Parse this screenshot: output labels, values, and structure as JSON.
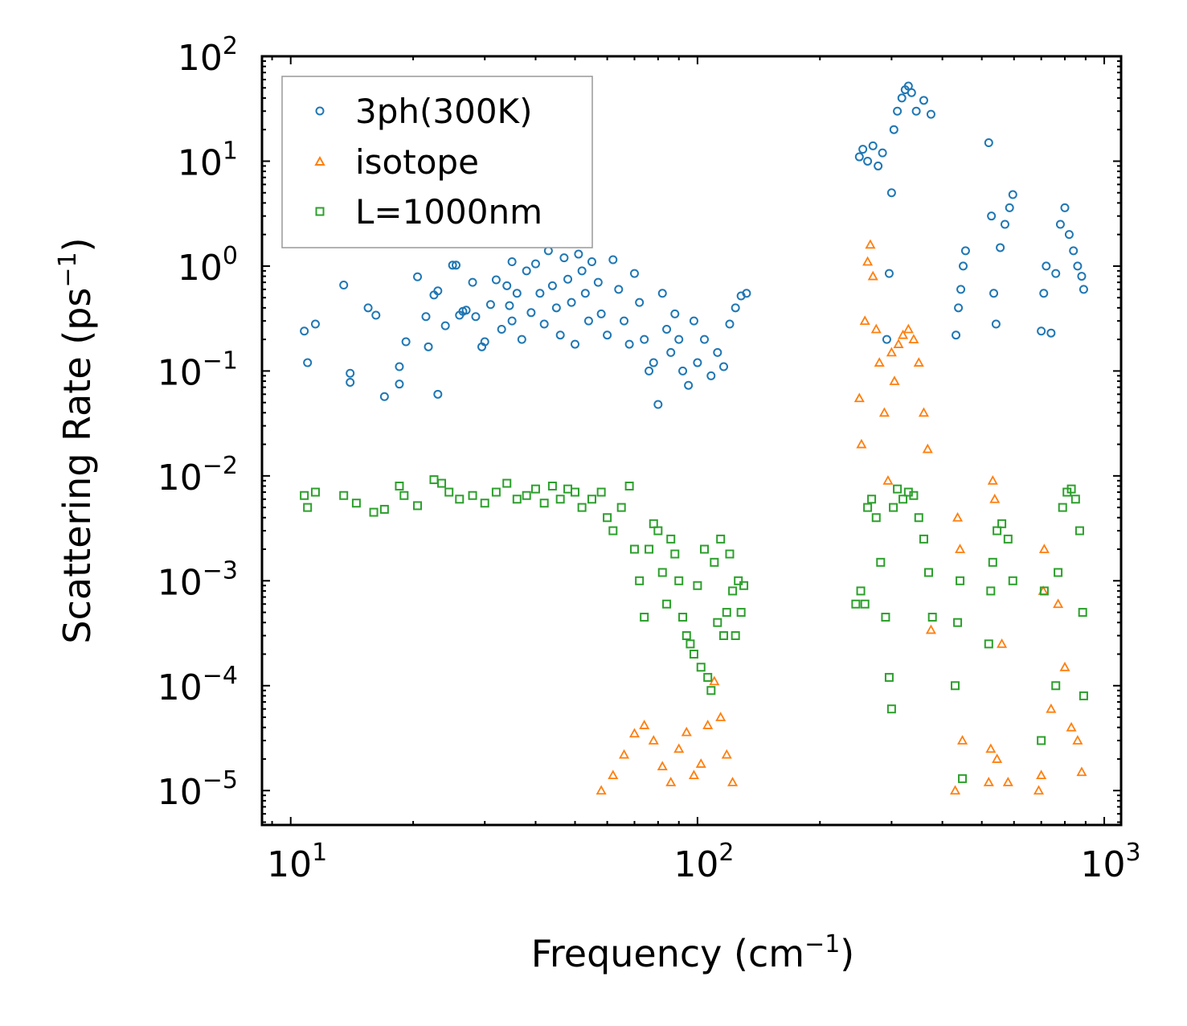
{
  "chart_data": {
    "type": "scatter",
    "title": "",
    "xlabel": "Frequency (cm",
    "xlabel_sup": "−1",
    "xlabel_end": ")",
    "ylabel": "Scattering Rate (ps",
    "ylabel_sup": "−1",
    "ylabel_end": ")",
    "xscale": "log",
    "yscale": "log",
    "xlim": [
      8.5,
      1100
    ],
    "ylim": [
      4.7e-06,
      100
    ],
    "x_ticks": [
      {
        "base": "10",
        "exp": "1",
        "value": 10
      },
      {
        "base": "10",
        "exp": "2",
        "value": 100
      },
      {
        "base": "10",
        "exp": "3",
        "value": 1000
      }
    ],
    "y_ticks": [
      {
        "base": "10",
        "exp": "2",
        "value": 100
      },
      {
        "base": "10",
        "exp": "1",
        "value": 10
      },
      {
        "base": "10",
        "exp": "0",
        "value": 1
      },
      {
        "base": "10",
        "exp": "−1",
        "value": 0.1
      },
      {
        "base": "10",
        "exp": "−2",
        "value": 0.01
      },
      {
        "base": "10",
        "exp": "−3",
        "value": 0.001
      },
      {
        "base": "10",
        "exp": "−4",
        "value": 0.0001
      },
      {
        "base": "10",
        "exp": "−5",
        "value": 1e-05
      }
    ],
    "legend_position": "top-left",
    "series": [
      {
        "name": "3ph(300K)",
        "marker": "circle",
        "color": "#1f77b4",
        "points": [
          [
            10.8,
            0.24
          ],
          [
            11.0,
            0.12
          ],
          [
            11.5,
            0.28
          ],
          [
            13.5,
            0.66
          ],
          [
            14.0,
            0.095
          ],
          [
            14.0,
            0.078
          ],
          [
            15.5,
            0.4
          ],
          [
            16.2,
            0.34
          ],
          [
            17.0,
            0.057
          ],
          [
            18.5,
            0.11
          ],
          [
            18.5,
            0.075
          ],
          [
            19.2,
            0.19
          ],
          [
            20.5,
            0.79
          ],
          [
            21.5,
            0.33
          ],
          [
            21.8,
            0.17
          ],
          [
            22.5,
            0.53
          ],
          [
            23.0,
            0.58
          ],
          [
            23.0,
            0.06
          ],
          [
            24.0,
            0.27
          ],
          [
            25.0,
            1.02
          ],
          [
            25.5,
            1.02
          ],
          [
            26.0,
            0.34
          ],
          [
            26.5,
            0.37
          ],
          [
            27.0,
            0.38
          ],
          [
            28.0,
            0.7
          ],
          [
            28.5,
            0.33
          ],
          [
            29.5,
            0.17
          ],
          [
            30.0,
            0.19
          ],
          [
            31.0,
            0.43
          ],
          [
            32.0,
            0.74
          ],
          [
            33.0,
            0.25
          ],
          [
            34.0,
            0.65
          ],
          [
            34.5,
            0.42
          ],
          [
            35.0,
            1.1
          ],
          [
            35.0,
            0.3
          ],
          [
            36.0,
            0.55
          ],
          [
            37.0,
            0.2
          ],
          [
            38.0,
            0.9
          ],
          [
            39.0,
            0.36
          ],
          [
            40.0,
            1.05
          ],
          [
            41.0,
            0.55
          ],
          [
            42.0,
            0.28
          ],
          [
            43.0,
            1.4
          ],
          [
            44.0,
            0.65
          ],
          [
            45.0,
            0.4
          ],
          [
            46.0,
            0.22
          ],
          [
            47.0,
            1.2
          ],
          [
            48.0,
            0.75
          ],
          [
            49.0,
            0.45
          ],
          [
            50.0,
            0.18
          ],
          [
            51.0,
            1.3
          ],
          [
            52.0,
            0.9
          ],
          [
            53.0,
            0.55
          ],
          [
            54.0,
            0.3
          ],
          [
            55.0,
            1.1
          ],
          [
            57.0,
            0.7
          ],
          [
            58.0,
            0.35
          ],
          [
            60.0,
            0.22
          ],
          [
            62.0,
            1.15
          ],
          [
            64.0,
            0.6
          ],
          [
            66.0,
            0.3
          ],
          [
            68.0,
            0.18
          ],
          [
            70.0,
            0.85
          ],
          [
            72.0,
            0.45
          ],
          [
            74.0,
            0.2
          ],
          [
            76.0,
            0.1
          ],
          [
            78.0,
            0.12
          ],
          [
            80.0,
            0.048
          ],
          [
            82.0,
            0.55
          ],
          [
            84.0,
            0.25
          ],
          [
            86.0,
            0.15
          ],
          [
            88.0,
            0.35
          ],
          [
            90.0,
            0.2
          ],
          [
            92.0,
            0.1
          ],
          [
            95.0,
            0.073
          ],
          [
            98.0,
            0.3
          ],
          [
            100.0,
            0.12
          ],
          [
            104.0,
            0.2
          ],
          [
            108.0,
            0.09
          ],
          [
            112.0,
            0.15
          ],
          [
            116.0,
            0.11
          ],
          [
            120.0,
            0.28
          ],
          [
            124.0,
            0.4
          ],
          [
            128.0,
            0.52
          ],
          [
            132.0,
            0.55
          ],
          [
            250,
            11
          ],
          [
            255,
            13
          ],
          [
            262,
            10
          ],
          [
            270,
            14
          ],
          [
            278,
            9
          ],
          [
            285,
            12
          ],
          [
            292,
            0.2
          ],
          [
            296,
            0.85
          ],
          [
            300,
            5
          ],
          [
            304,
            20
          ],
          [
            310,
            30
          ],
          [
            318,
            40
          ],
          [
            324,
            48
          ],
          [
            330,
            52
          ],
          [
            336,
            45
          ],
          [
            345,
            30
          ],
          [
            360,
            38
          ],
          [
            375,
            28
          ],
          [
            432,
            0.22
          ],
          [
            438,
            0.4
          ],
          [
            444,
            0.6
          ],
          [
            450,
            1.0
          ],
          [
            456,
            1.4
          ],
          [
            520,
            15
          ],
          [
            528,
            3.0
          ],
          [
            535,
            0.55
          ],
          [
            542,
            0.28
          ],
          [
            555,
            1.5
          ],
          [
            570,
            2.5
          ],
          [
            585,
            3.6
          ],
          [
            596,
            4.8
          ],
          [
            700,
            0.24
          ],
          [
            710,
            0.55
          ],
          [
            720,
            1.0
          ],
          [
            740,
            0.23
          ],
          [
            760,
            0.85
          ],
          [
            780,
            2.5
          ],
          [
            800,
            3.6
          ],
          [
            820,
            2.0
          ],
          [
            840,
            1.4
          ],
          [
            860,
            1.0
          ],
          [
            880,
            0.8
          ],
          [
            890,
            0.6
          ]
        ]
      },
      {
        "name": "isotope",
        "marker": "triangle",
        "color": "#ff7f0e",
        "points": [
          [
            58,
            1e-05
          ],
          [
            62,
            1.4e-05
          ],
          [
            66,
            2.2e-05
          ],
          [
            70,
            3.5e-05
          ],
          [
            74,
            4.2e-05
          ],
          [
            78,
            3e-05
          ],
          [
            82,
            1.7e-05
          ],
          [
            86,
            1.2e-05
          ],
          [
            90,
            2.5e-05
          ],
          [
            94,
            3.6e-05
          ],
          [
            98,
            1.4e-05
          ],
          [
            102,
            1.8e-05
          ],
          [
            106,
            4.2e-05
          ],
          [
            110,
            0.00011
          ],
          [
            114,
            5e-05
          ],
          [
            118,
            2.2e-05
          ],
          [
            122,
            1.2e-05
          ],
          [
            250,
            0.055
          ],
          [
            253,
            0.02
          ],
          [
            258,
            0.3
          ],
          [
            262,
            1.1
          ],
          [
            266,
            1.6
          ],
          [
            270,
            0.8
          ],
          [
            275,
            0.25
          ],
          [
            280,
            0.12
          ],
          [
            288,
            0.04
          ],
          [
            294,
            0.009
          ],
          [
            300,
            0.15
          ],
          [
            305,
            0.08
          ],
          [
            312,
            0.18
          ],
          [
            320,
            0.22
          ],
          [
            330,
            0.25
          ],
          [
            340,
            0.2
          ],
          [
            350,
            0.12
          ],
          [
            360,
            0.04
          ],
          [
            368,
            0.018
          ],
          [
            375,
            0.00034
          ],
          [
            430,
            1e-05
          ],
          [
            436,
            0.004
          ],
          [
            442,
            0.002
          ],
          [
            448,
            3e-05
          ],
          [
            520,
            1.2e-05
          ],
          [
            526,
            2.5e-05
          ],
          [
            532,
            0.009
          ],
          [
            538,
            0.006
          ],
          [
            545,
            2e-05
          ],
          [
            560,
            0.00025
          ],
          [
            580,
            1.2e-05
          ],
          [
            690,
            1e-05
          ],
          [
            700,
            1.4e-05
          ],
          [
            708,
            0.0008
          ],
          [
            712,
            0.002
          ],
          [
            740,
            6e-05
          ],
          [
            770,
            0.0006
          ],
          [
            800,
            0.00015
          ],
          [
            830,
            4e-05
          ],
          [
            860,
            3e-05
          ],
          [
            880,
            1.5e-05
          ]
        ]
      },
      {
        "name": "L=1000nm",
        "marker": "square",
        "color": "#2ca02c",
        "points": [
          [
            10.8,
            0.0065
          ],
          [
            11.0,
            0.005
          ],
          [
            11.5,
            0.007
          ],
          [
            13.5,
            0.0065
          ],
          [
            14.5,
            0.0055
          ],
          [
            16.0,
            0.0045
          ],
          [
            17.0,
            0.0048
          ],
          [
            18.5,
            0.008
          ],
          [
            19.0,
            0.0065
          ],
          [
            20.5,
            0.0052
          ],
          [
            22.5,
            0.0092
          ],
          [
            23.5,
            0.0085
          ],
          [
            24.5,
            0.007
          ],
          [
            26.0,
            0.006
          ],
          [
            28.0,
            0.0065
          ],
          [
            30.0,
            0.0055
          ],
          [
            32.0,
            0.007
          ],
          [
            34.0,
            0.0085
          ],
          [
            36.0,
            0.006
          ],
          [
            38.0,
            0.0065
          ],
          [
            40.0,
            0.0075
          ],
          [
            42.0,
            0.0055
          ],
          [
            44.0,
            0.008
          ],
          [
            46.0,
            0.006
          ],
          [
            48.0,
            0.0075
          ],
          [
            50.0,
            0.007
          ],
          [
            52.0,
            0.005
          ],
          [
            55.0,
            0.006
          ],
          [
            58.0,
            0.007
          ],
          [
            60.0,
            0.004
          ],
          [
            62.0,
            0.003
          ],
          [
            65.0,
            0.005
          ],
          [
            68.0,
            0.008
          ],
          [
            70.0,
            0.002
          ],
          [
            72.0,
            0.001
          ],
          [
            74.0,
            0.00045
          ],
          [
            76.0,
            0.002
          ],
          [
            78.0,
            0.0035
          ],
          [
            80.0,
            0.003
          ],
          [
            82.0,
            0.0012
          ],
          [
            84.0,
            0.0006
          ],
          [
            86.0,
            0.0025
          ],
          [
            88.0,
            0.0018
          ],
          [
            90.0,
            0.001
          ],
          [
            92.0,
            0.00045
          ],
          [
            94.0,
            0.0003
          ],
          [
            96.0,
            0.00025
          ],
          [
            98.0,
            0.0002
          ],
          [
            100.0,
            0.0009
          ],
          [
            102.0,
            0.00015
          ],
          [
            104.0,
            0.002
          ],
          [
            106.0,
            0.00012
          ],
          [
            108.0,
            9e-05
          ],
          [
            110.0,
            0.0015
          ],
          [
            112.0,
            0.0004
          ],
          [
            114.0,
            0.0025
          ],
          [
            116.0,
            0.0003
          ],
          [
            118.0,
            0.0005
          ],
          [
            120.0,
            0.0018
          ],
          [
            122.0,
            0.0008
          ],
          [
            124.0,
            0.0003
          ],
          [
            126.0,
            0.001
          ],
          [
            128.0,
            0.0005
          ],
          [
            130.0,
            0.0009
          ],
          [
            245,
            0.0006
          ],
          [
            252,
            0.0008
          ],
          [
            258,
            0.0006
          ],
          [
            262,
            0.005
          ],
          [
            268,
            0.006
          ],
          [
            275,
            0.004
          ],
          [
            282,
            0.0015
          ],
          [
            290,
            0.00045
          ],
          [
            296,
            0.00012
          ],
          [
            300,
            6e-05
          ],
          [
            303,
            0.005
          ],
          [
            310,
            0.0075
          ],
          [
            320,
            0.006
          ],
          [
            330,
            0.007
          ],
          [
            340,
            0.0065
          ],
          [
            350,
            0.004
          ],
          [
            360,
            0.0025
          ],
          [
            370,
            0.0012
          ],
          [
            378,
            0.00045
          ],
          [
            430,
            0.0001
          ],
          [
            436,
            0.0004
          ],
          [
            442,
            0.001
          ],
          [
            448,
            1.3e-05
          ],
          [
            520,
            0.00025
          ],
          [
            526,
            0.0008
          ],
          [
            532,
            0.0015
          ],
          [
            545,
            0.003
          ],
          [
            560,
            0.0035
          ],
          [
            580,
            0.0025
          ],
          [
            596,
            0.001
          ],
          [
            700,
            3e-05
          ],
          [
            712,
            0.0008
          ],
          [
            760,
            0.0001
          ],
          [
            770,
            0.0012
          ],
          [
            790,
            0.005
          ],
          [
            810,
            0.007
          ],
          [
            830,
            0.0075
          ],
          [
            850,
            0.006
          ],
          [
            870,
            0.003
          ],
          [
            885,
            0.0005
          ],
          [
            890,
            8e-05
          ]
        ]
      }
    ]
  }
}
